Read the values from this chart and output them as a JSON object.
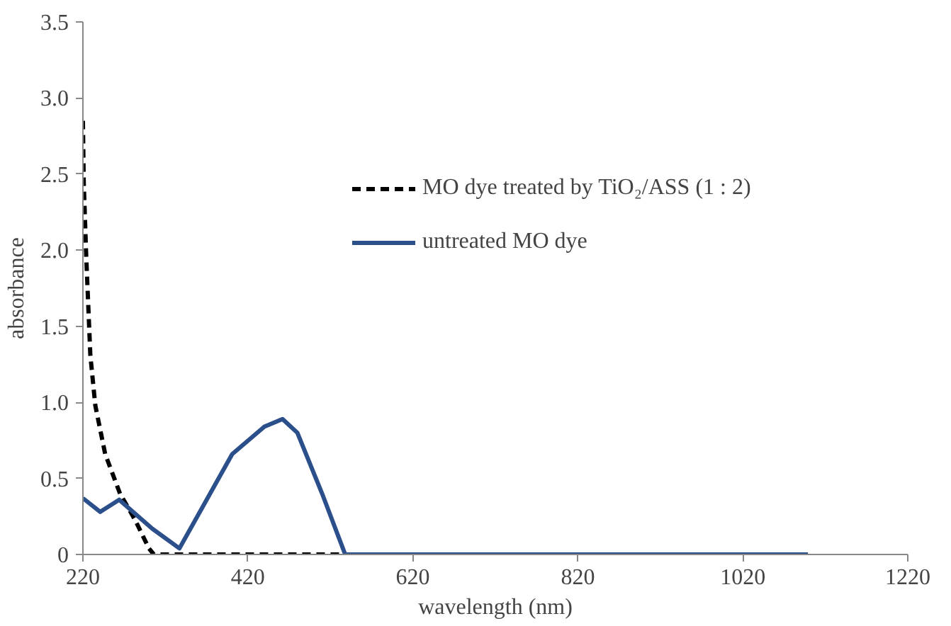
{
  "chart_data": {
    "type": "line",
    "xlabel": "wavelength (nm)",
    "ylabel": "absorbance",
    "xlim": [
      220,
      1220
    ],
    "xticks": [
      220,
      420,
      620,
      820,
      1020,
      1220
    ],
    "ylim": [
      0,
      3.5
    ],
    "yticks": [
      0,
      0.5,
      {
        "value": 1,
        "label": "1.0"
      },
      1.5,
      {
        "value": 2,
        "label": "2.0"
      },
      2.5,
      {
        "value": 3,
        "label": "3.0"
      },
      3.5
    ],
    "grid": false,
    "legend": "top right",
    "marker": "none",
    "series": [
      {
        "name": "MO dye treated by TiO₂/ASS (1 : 2)",
        "color": "#000000",
        "line_style": "dashed",
        "x": [
          220,
          221,
          224,
          229,
          235,
          247,
          265,
          283,
          300,
          306,
          400,
          531
        ],
        "values": [
          2.85,
          2.45,
          1.96,
          1.31,
          0.98,
          0.66,
          0.4,
          0.23,
          0.04,
          0,
          0,
          0
        ]
      },
      {
        "name": "untreated MO dye",
        "color": "#2b4f8a",
        "line_style": "solid",
        "x": [
          220,
          241,
          264,
          304,
          337,
          401,
          440,
          462,
          480,
          510,
          538,
          700,
          900,
          1099
        ],
        "values": [
          0.37,
          0.28,
          0.36,
          0.17,
          0.04,
          0.66,
          0.84,
          0.89,
          0.8,
          0.4,
          0,
          0,
          0,
          0
        ]
      }
    ]
  }
}
